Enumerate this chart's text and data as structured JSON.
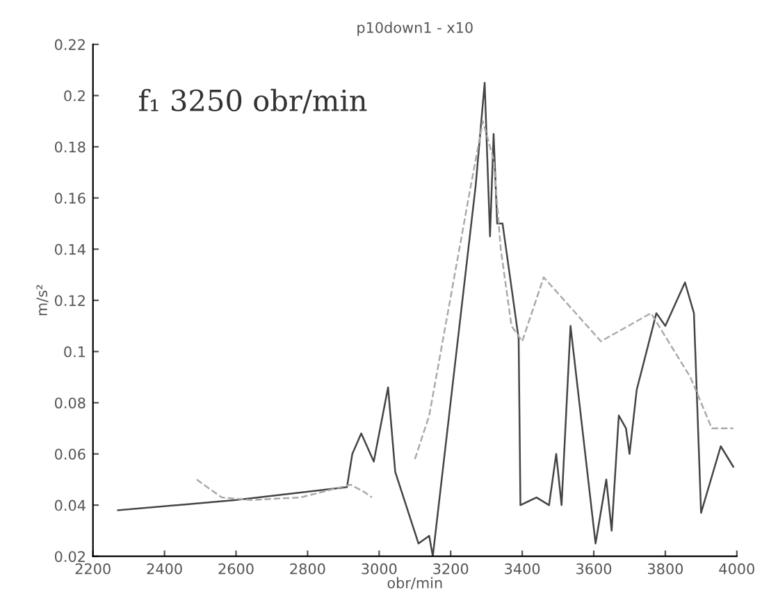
{
  "chart_data": {
    "type": "line",
    "title": "p10down1 - x10",
    "xlabel": "obr/min",
    "ylabel": "m/s²",
    "annotations": [
      "f₁ 3250 obr/min"
    ],
    "xlim": [
      2200,
      4000
    ],
    "xticks": [
      2200,
      2400,
      2600,
      2800,
      3000,
      3200,
      3400,
      3600,
      3800,
      4000
    ],
    "ylim": [
      0.02,
      0.22
    ],
    "yticks": [
      0.02,
      0.04,
      0.06,
      0.08,
      0.1,
      0.12,
      0.14,
      0.16,
      0.18,
      0.2,
      0.22
    ],
    "grid": false,
    "legend": false,
    "series": [
      {
        "color": "#444444",
        "line_style": "solid",
        "x": [
          2270,
          2600,
          2910,
          2925,
          2950,
          2985,
          3025,
          3045,
          3110,
          3140,
          3150,
          3270,
          3295,
          3310,
          3320,
          3330,
          3345,
          3390,
          3395,
          3440,
          3475,
          3495,
          3510,
          3535,
          3605,
          3635,
          3650,
          3670,
          3690,
          3700,
          3720,
          3775,
          3800,
          3855,
          3880,
          3900,
          3955,
          3990
        ],
        "values": [
          0.038,
          0.042,
          0.047,
          0.06,
          0.068,
          0.057,
          0.086,
          0.053,
          0.025,
          0.028,
          0.02,
          0.165,
          0.205,
          0.145,
          0.185,
          0.15,
          0.15,
          0.105,
          0.04,
          0.043,
          0.04,
          0.06,
          0.04,
          0.11,
          0.025,
          0.05,
          0.03,
          0.075,
          0.07,
          0.06,
          0.085,
          0.115,
          0.11,
          0.127,
          0.115,
          0.037,
          0.063,
          0.055
        ]
      },
      {
        "color": "#aaaaaa",
        "line_style": "dashed",
        "x": [
          2490,
          2560,
          2640,
          2780,
          2920,
          2960,
          2980,
          3040,
          3100,
          3140,
          3250,
          3290,
          3320,
          3340,
          3370,
          3400,
          3460,
          3620,
          3760,
          3870,
          3930,
          3990
        ],
        "values": [
          0.05,
          0.043,
          0.042,
          0.043,
          0.048,
          0.045,
          0.043,
          null,
          0.058,
          0.075,
          0.16,
          0.19,
          0.175,
          0.14,
          0.11,
          0.104,
          0.129,
          0.104,
          0.115,
          0.09,
          0.07,
          0.07
        ]
      }
    ]
  }
}
